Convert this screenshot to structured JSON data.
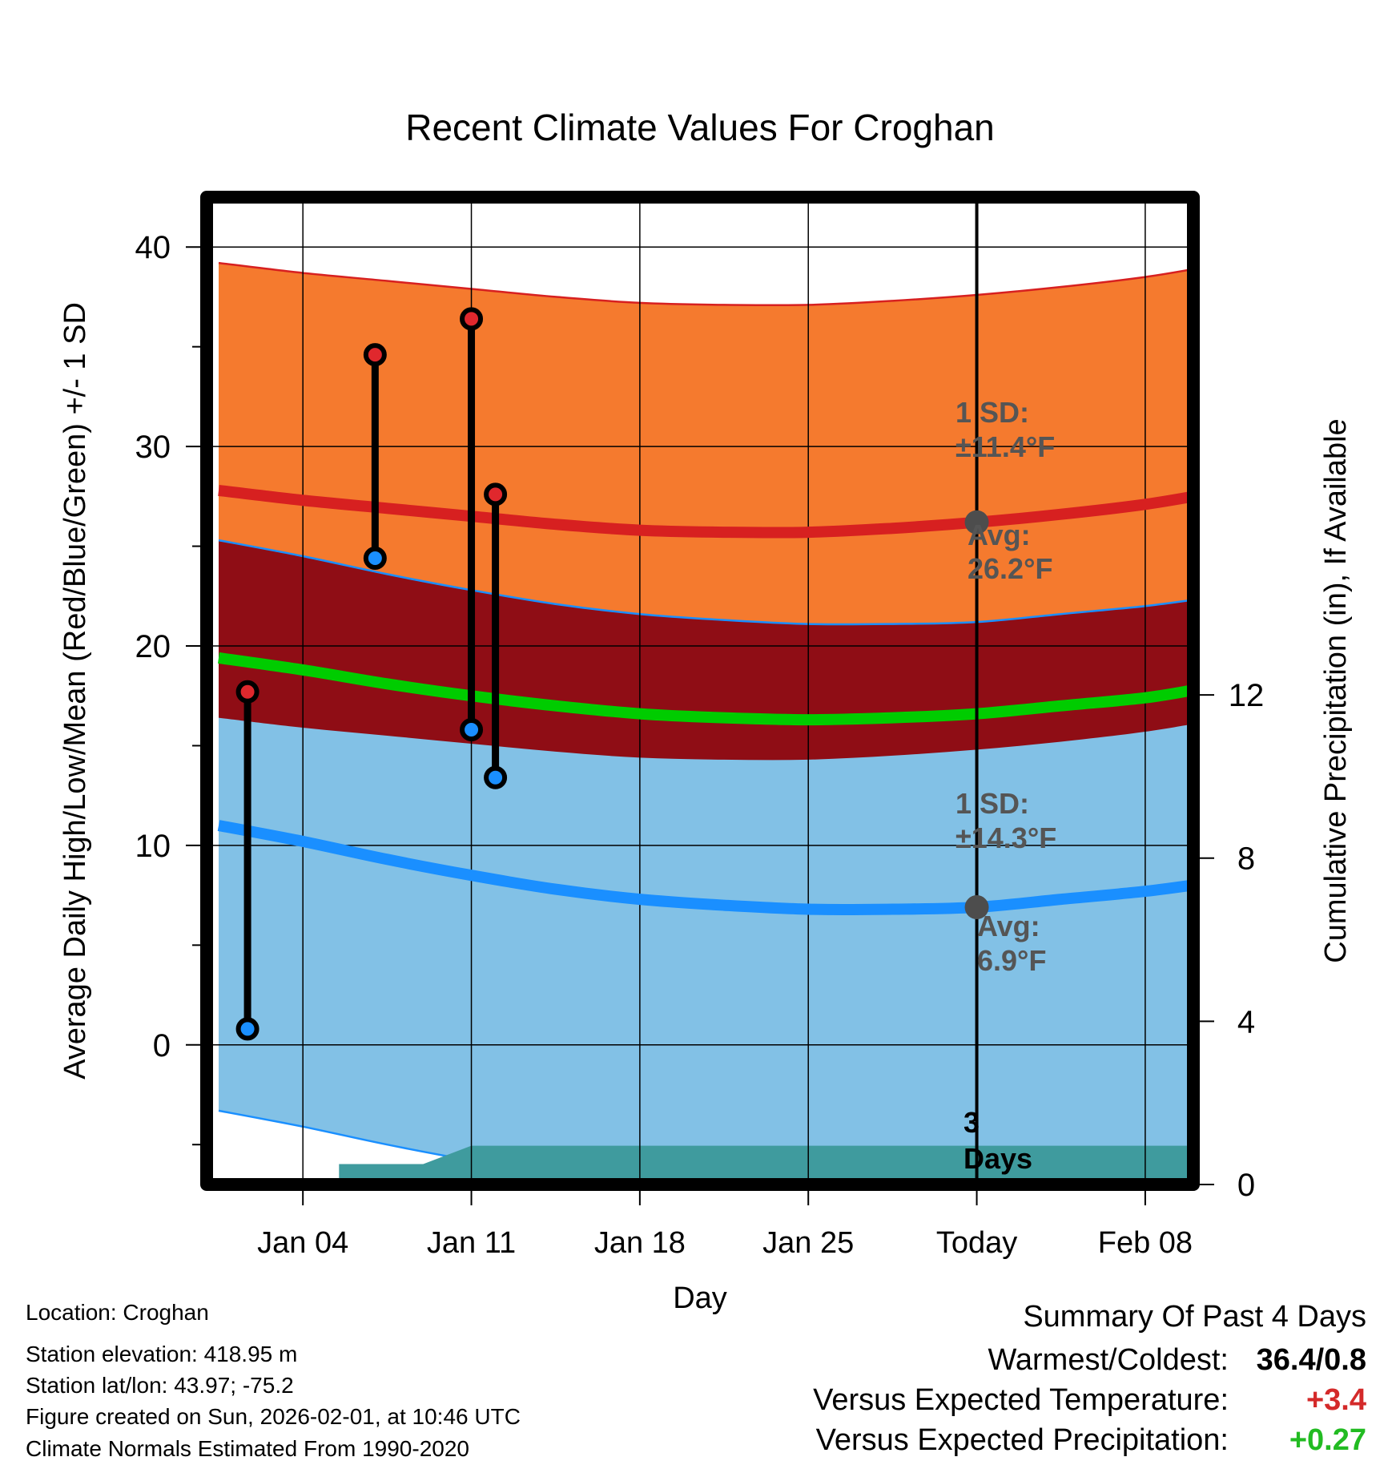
{
  "chart_data": {
    "type": "line",
    "title": "Recent Climate Values For Croghan",
    "xlabel": "Day",
    "ylabel": "Average Daily High/Low/Mean (Red/Blue/Green) +/- 1 SD",
    "y2label": "Cumulative Precipitation (in), If Available",
    "xlim": [
      0,
      41
    ],
    "ylim": [
      -7,
      42.5
    ],
    "y2lim": [
      0,
      24.2
    ],
    "x_ticks": [
      {
        "day": 4,
        "label": "Jan 04"
      },
      {
        "day": 11,
        "label": "Jan 11"
      },
      {
        "day": 18,
        "label": "Jan 18"
      },
      {
        "day": 25,
        "label": "Jan 25"
      },
      {
        "day": 32,
        "label": "Today"
      },
      {
        "day": 39,
        "label": "Feb 08"
      }
    ],
    "y_ticks": [
      "0",
      "10",
      "20",
      "30",
      "40"
    ],
    "y2_ticks": [
      "0",
      "4",
      "8",
      "12"
    ],
    "today_day": 32,
    "normal_days": [
      0.5,
      4,
      7.5,
      11,
      14.5,
      18,
      21.5,
      25,
      28.5,
      32,
      35.5,
      39,
      41.5
    ],
    "normal_high": [
      27.8,
      27.3,
      26.9,
      26.5,
      26.1,
      25.8,
      25.7,
      25.7,
      25.9,
      26.2,
      26.6,
      27.1,
      27.6
    ],
    "normal_high_sd": 11.4,
    "normal_low": [
      11.0,
      10.2,
      9.3,
      8.5,
      7.8,
      7.3,
      7.0,
      6.8,
      6.8,
      6.9,
      7.3,
      7.7,
      8.1
    ],
    "normal_low_sd": 14.3,
    "normal_mean": [
      19.4,
      18.8,
      18.1,
      17.5,
      17.0,
      16.6,
      16.4,
      16.3,
      16.4,
      16.6,
      17.0,
      17.4,
      17.9
    ],
    "observed": [
      {
        "day": 1.7,
        "high": 17.7,
        "low": 0.8
      },
      {
        "day": 7.0,
        "high": 34.6,
        "low": 24.4
      },
      {
        "day": 11.0,
        "high": 36.4,
        "low": 15.8
      },
      {
        "day": 12.0,
        "high": 27.6,
        "low": 13.4
      }
    ],
    "precip_x": [
      5.5,
      9.0,
      11.0,
      32.0,
      41.5
    ],
    "precip_y": [
      0.5,
      0.5,
      0.95,
      0.95,
      0.95
    ],
    "annotations": {
      "high_sd_label": "1 SD:",
      "high_sd_value": "±11.4°F",
      "high_avg_label": "Avg:",
      "high_avg_value": "26.2°F",
      "low_sd_label": "1 SD:",
      "low_sd_value": "±14.3°F",
      "low_avg_label": "Avg:",
      "low_avg_value": "6.9°F",
      "days_number": "3",
      "days_word": "Days"
    },
    "colors": {
      "high_band": "#f57a2e",
      "overlap_band": "#8f0d15",
      "low_band": "#82c1e6",
      "high_line": "#d72020",
      "low_line": "#1a8fff",
      "mean_line": "#00cc00",
      "precip_fill": "#3f9b9e",
      "marker_high": "#e0282d",
      "marker_low": "#1a8fff",
      "annotation_text": "#555555"
    }
  },
  "info": {
    "location": "Location: Croghan",
    "elevation": "Station elevation: 418.95 m",
    "latlon": "Station lat/lon: 43.97; -75.2",
    "created": "Figure created on Sun, 2026-02-01, at 10:46 UTC",
    "normals": "Climate Normals Estimated From 1990-2020"
  },
  "summary": {
    "title": "Summary Of Past 4 Days",
    "warmest_label": "Warmest/Coldest:",
    "warmest_value": "36.4/0.8",
    "temp_label": "Versus Expected Temperature:",
    "temp_value": "+3.4",
    "temp_color": "#d42a2a",
    "precip_label": "Versus Expected Precipitation:",
    "precip_value": "+0.27",
    "precip_color": "#22bb22"
  }
}
